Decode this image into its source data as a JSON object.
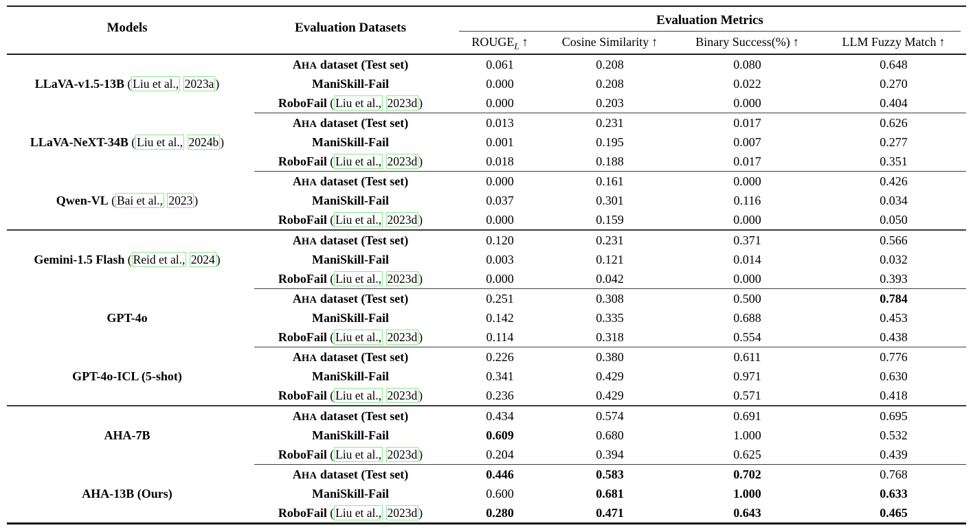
{
  "colors": {
    "citation_box_border": "#8ce88c",
    "text": "#000000",
    "rule": "#1c1c1c"
  },
  "header": {
    "models": "Models",
    "datasets": "Evaluation Datasets",
    "metrics_group": "Evaluation Metrics",
    "metrics": [
      {
        "main": "ROUGE",
        "sub": "L",
        "arrow": "↑"
      },
      {
        "main": "Cosine Similarity",
        "sub": "",
        "arrow": "↑"
      },
      {
        "main": "Binary Success(%)",
        "sub": "",
        "arrow": "↑"
      },
      {
        "main": "LLM Fuzzy Match",
        "sub": "",
        "arrow": "↑"
      }
    ]
  },
  "dataset_rows": [
    {
      "kind": "smallcaps",
      "sc_big": "A",
      "sc_small": "HA",
      "rest": " dataset (Test set)"
    },
    {
      "kind": "plain",
      "label": "ManiSkill-Fail"
    },
    {
      "kind": "cited",
      "label": "RoboFail",
      "cite": {
        "open": "(",
        "box1": "Liu et al.,",
        "box2": "2023d",
        "close": ")"
      }
    }
  ],
  "blocks": [
    {
      "model": "LLaVA-v1.5-13B",
      "citation": {
        "open": "(",
        "box1": "Liu et al.,",
        "box2": "2023a",
        "close": ")"
      },
      "rows": [
        {
          "values": [
            "0.061",
            "0.208",
            "0.080",
            "0.648"
          ],
          "bold": [
            false,
            false,
            false,
            false
          ]
        },
        {
          "values": [
            "0.000",
            "0.208",
            "0.022",
            "0.270"
          ],
          "bold": [
            false,
            false,
            false,
            false
          ]
        },
        {
          "values": [
            "0.000",
            "0.203",
            "0.000",
            "0.404"
          ],
          "bold": [
            false,
            false,
            false,
            false
          ]
        }
      ],
      "divider_after": "partial"
    },
    {
      "model": "LLaVA-NeXT-34B",
      "citation": {
        "open": "(",
        "box1": "Liu et al.,",
        "box2": "2024b",
        "close": ")"
      },
      "rows": [
        {
          "values": [
            "0.013",
            "0.231",
            "0.017",
            "0.626"
          ],
          "bold": [
            false,
            false,
            false,
            false
          ]
        },
        {
          "values": [
            "0.001",
            "0.195",
            "0.007",
            "0.277"
          ],
          "bold": [
            false,
            false,
            false,
            false
          ]
        },
        {
          "values": [
            "0.018",
            "0.188",
            "0.017",
            "0.351"
          ],
          "bold": [
            false,
            false,
            false,
            false
          ]
        }
      ],
      "divider_after": "partial"
    },
    {
      "model": "Qwen-VL",
      "citation": {
        "open": "(",
        "box1": "Bai et al.,",
        "box2": "2023",
        "close": ")"
      },
      "rows": [
        {
          "values": [
            "0.000",
            "0.161",
            "0.000",
            "0.426"
          ],
          "bold": [
            false,
            false,
            false,
            false
          ]
        },
        {
          "values": [
            "0.037",
            "0.301",
            "0.116",
            "0.034"
          ],
          "bold": [
            false,
            false,
            false,
            false
          ]
        },
        {
          "values": [
            "0.000",
            "0.159",
            "0.000",
            "0.050"
          ],
          "bold": [
            false,
            false,
            false,
            false
          ]
        }
      ],
      "divider_after": "thick"
    },
    {
      "model": "Gemini-1.5 Flash",
      "citation": {
        "open": "(",
        "box1": "Reid et al.,",
        "box2": "2024",
        "close": ")"
      },
      "rows": [
        {
          "values": [
            "0.120",
            "0.231",
            "0.371",
            "0.566"
          ],
          "bold": [
            false,
            false,
            false,
            false
          ]
        },
        {
          "values": [
            "0.003",
            "0.121",
            "0.014",
            "0.032"
          ],
          "bold": [
            false,
            false,
            false,
            false
          ]
        },
        {
          "values": [
            "0.000",
            "0.042",
            "0.000",
            "0.393"
          ],
          "bold": [
            false,
            false,
            false,
            false
          ]
        }
      ],
      "divider_after": "partial"
    },
    {
      "model": "GPT-4o",
      "citation": null,
      "rows": [
        {
          "values": [
            "0.251",
            "0.308",
            "0.500",
            "0.784"
          ],
          "bold": [
            false,
            false,
            false,
            true
          ]
        },
        {
          "values": [
            "0.142",
            "0.335",
            "0.688",
            "0.453"
          ],
          "bold": [
            false,
            false,
            false,
            false
          ]
        },
        {
          "values": [
            "0.114",
            "0.318",
            "0.554",
            "0.438"
          ],
          "bold": [
            false,
            false,
            false,
            false
          ]
        }
      ],
      "divider_after": "partial"
    },
    {
      "model": "GPT-4o-ICL (5-shot)",
      "citation": null,
      "rows": [
        {
          "values": [
            "0.226",
            "0.380",
            "0.611",
            "0.776"
          ],
          "bold": [
            false,
            false,
            false,
            false
          ]
        },
        {
          "values": [
            "0.341",
            "0.429",
            "0.971",
            "0.630"
          ],
          "bold": [
            false,
            false,
            false,
            false
          ]
        },
        {
          "values": [
            "0.236",
            "0.429",
            "0.571",
            "0.418"
          ],
          "bold": [
            false,
            false,
            false,
            false
          ]
        }
      ],
      "divider_after": "thick"
    },
    {
      "model": "AHA-7B",
      "citation": null,
      "rows": [
        {
          "values": [
            "0.434",
            "0.574",
            "0.691",
            "0.695"
          ],
          "bold": [
            false,
            false,
            false,
            false
          ]
        },
        {
          "values": [
            "0.609",
            "0.680",
            "1.000",
            "0.532"
          ],
          "bold": [
            true,
            false,
            false,
            false
          ]
        },
        {
          "values": [
            "0.204",
            "0.394",
            "0.625",
            "0.439"
          ],
          "bold": [
            false,
            false,
            false,
            false
          ]
        }
      ],
      "divider_after": "partial"
    },
    {
      "model": "AHA-13B (Ours)",
      "citation": null,
      "rows": [
        {
          "values": [
            "0.446",
            "0.583",
            "0.702",
            "0.768"
          ],
          "bold": [
            true,
            true,
            true,
            false
          ]
        },
        {
          "values": [
            "0.600",
            "0.681",
            "1.000",
            "0.633"
          ],
          "bold": [
            false,
            true,
            true,
            true
          ]
        },
        {
          "values": [
            "0.280",
            "0.471",
            "0.643",
            "0.465"
          ],
          "bold": [
            true,
            true,
            true,
            true
          ]
        }
      ],
      "divider_after": "none"
    }
  ]
}
